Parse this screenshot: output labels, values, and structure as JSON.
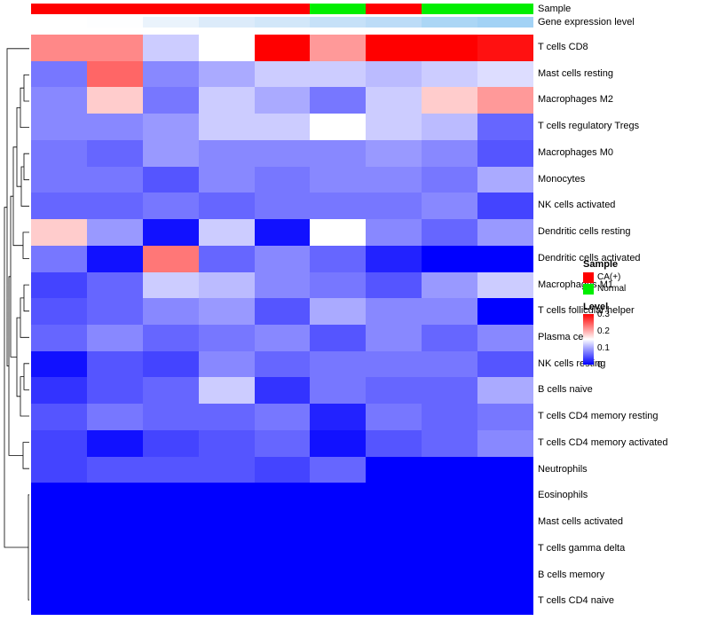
{
  "chart_data": {
    "type": "heatmap",
    "columns": 9,
    "rows": [
      "T cells CD8",
      "Mast cells resting",
      "Macrophages M2",
      "T cells regulatory  Tregs",
      "Macrophages M0",
      "Monocytes",
      "NK cells activated",
      "Dendritic cells resting",
      "Dendritic cells activated",
      "Macrophages M1",
      "T cells follicular helper",
      "Plasma cells",
      "NK cells resting",
      "B cells naive",
      "T cells CD4 memory resting",
      "T cells CD4 memory activated",
      "Neutrophils",
      "Eosinophils",
      "Mast cells activated",
      "T cells gamma delta",
      "B cells memory",
      "T cells CD4 naive"
    ],
    "values": [
      [
        0.22,
        0.22,
        0.12,
        0.15,
        0.3,
        0.21,
        0.3,
        0.3,
        0.29
      ],
      [
        0.07,
        0.24,
        0.08,
        0.1,
        0.12,
        0.12,
        0.11,
        0.12,
        0.13
      ],
      [
        0.08,
        0.18,
        0.07,
        0.12,
        0.1,
        0.07,
        0.12,
        0.18,
        0.21
      ],
      [
        0.08,
        0.08,
        0.09,
        0.12,
        0.12,
        0.15,
        0.12,
        0.11,
        0.06
      ],
      [
        0.07,
        0.06,
        0.09,
        0.08,
        0.08,
        0.08,
        0.09,
        0.08,
        0.05
      ],
      [
        0.07,
        0.07,
        0.05,
        0.08,
        0.07,
        0.08,
        0.08,
        0.07,
        0.1
      ],
      [
        0.06,
        0.06,
        0.07,
        0.06,
        0.07,
        0.07,
        0.07,
        0.08,
        0.04
      ],
      [
        0.18,
        0.09,
        0.01,
        0.12,
        0.01,
        0.15,
        0.08,
        0.06,
        0.09
      ],
      [
        0.07,
        0.01,
        0.23,
        0.06,
        0.08,
        0.06,
        0.02,
        0.0,
        0.0
      ],
      [
        0.04,
        0.06,
        0.12,
        0.11,
        0.08,
        0.07,
        0.05,
        0.09,
        0.12
      ],
      [
        0.05,
        0.06,
        0.08,
        0.09,
        0.05,
        0.1,
        0.08,
        0.08,
        0.0
      ],
      [
        0.06,
        0.08,
        0.06,
        0.07,
        0.08,
        0.05,
        0.08,
        0.06,
        0.08
      ],
      [
        0.01,
        0.05,
        0.04,
        0.08,
        0.06,
        0.07,
        0.07,
        0.07,
        0.05
      ],
      [
        0.03,
        0.05,
        0.06,
        0.12,
        0.03,
        0.07,
        0.06,
        0.06,
        0.1
      ],
      [
        0.05,
        0.07,
        0.06,
        0.06,
        0.07,
        0.02,
        0.07,
        0.06,
        0.07
      ],
      [
        0.04,
        0.01,
        0.04,
        0.05,
        0.06,
        0.01,
        0.05,
        0.06,
        0.08
      ],
      [
        0.04,
        0.05,
        0.05,
        0.05,
        0.04,
        0.06,
        0.0,
        0.0,
        0.0
      ],
      [
        0.0,
        0.0,
        0.0,
        0.0,
        0.0,
        0.0,
        0.0,
        0.0,
        0.0
      ],
      [
        0.0,
        0.0,
        0.0,
        0.0,
        0.0,
        0.0,
        0.0,
        0.0,
        0.0
      ],
      [
        0.0,
        0.0,
        0.0,
        0.0,
        0.0,
        0.0,
        0.0,
        0.0,
        0.0
      ],
      [
        0.0,
        0.0,
        0.0,
        0.0,
        0.0,
        0.0,
        0.0,
        0.0,
        0.0
      ],
      [
        0.0,
        0.0,
        0.0,
        0.0,
        0.0,
        0.0,
        0.0,
        0.0,
        0.0
      ]
    ],
    "value_domain": [
      0,
      0.3
    ],
    "colors": {
      "low": "#0000FF",
      "mid": "#FFFFFF",
      "high": "#FF0000"
    },
    "annotations": {
      "sample": {
        "label": "Sample",
        "per_column": [
          "CA(+)",
          "CA(+)",
          "CA(+)",
          "CA(+)",
          "CA(+)",
          "Normal",
          "CA(+)",
          "Normal",
          "Normal"
        ],
        "colors": {
          "CA(+)": "#FF0000",
          "Normal": "#00EE00"
        }
      },
      "gene_expression": {
        "label": "Gene expression level",
        "per_column_colors": [
          "#FFFFFF",
          "#FDFEFF",
          "#EAF3FC",
          "#DCEBFA",
          "#D2E7F9",
          "#C6E1F8",
          "#BCDCF7",
          "#ABD6F5",
          "#A2D2F5"
        ]
      }
    },
    "legend": {
      "sample_title": "Sample",
      "sample_items": [
        {
          "label": "CA(+)",
          "color": "#FF0000"
        },
        {
          "label": "Normal",
          "color": "#00EE00"
        }
      ],
      "level_title": "Level",
      "level_ticks": [
        "0.3",
        "0.2",
        "0.1",
        "0"
      ]
    }
  }
}
